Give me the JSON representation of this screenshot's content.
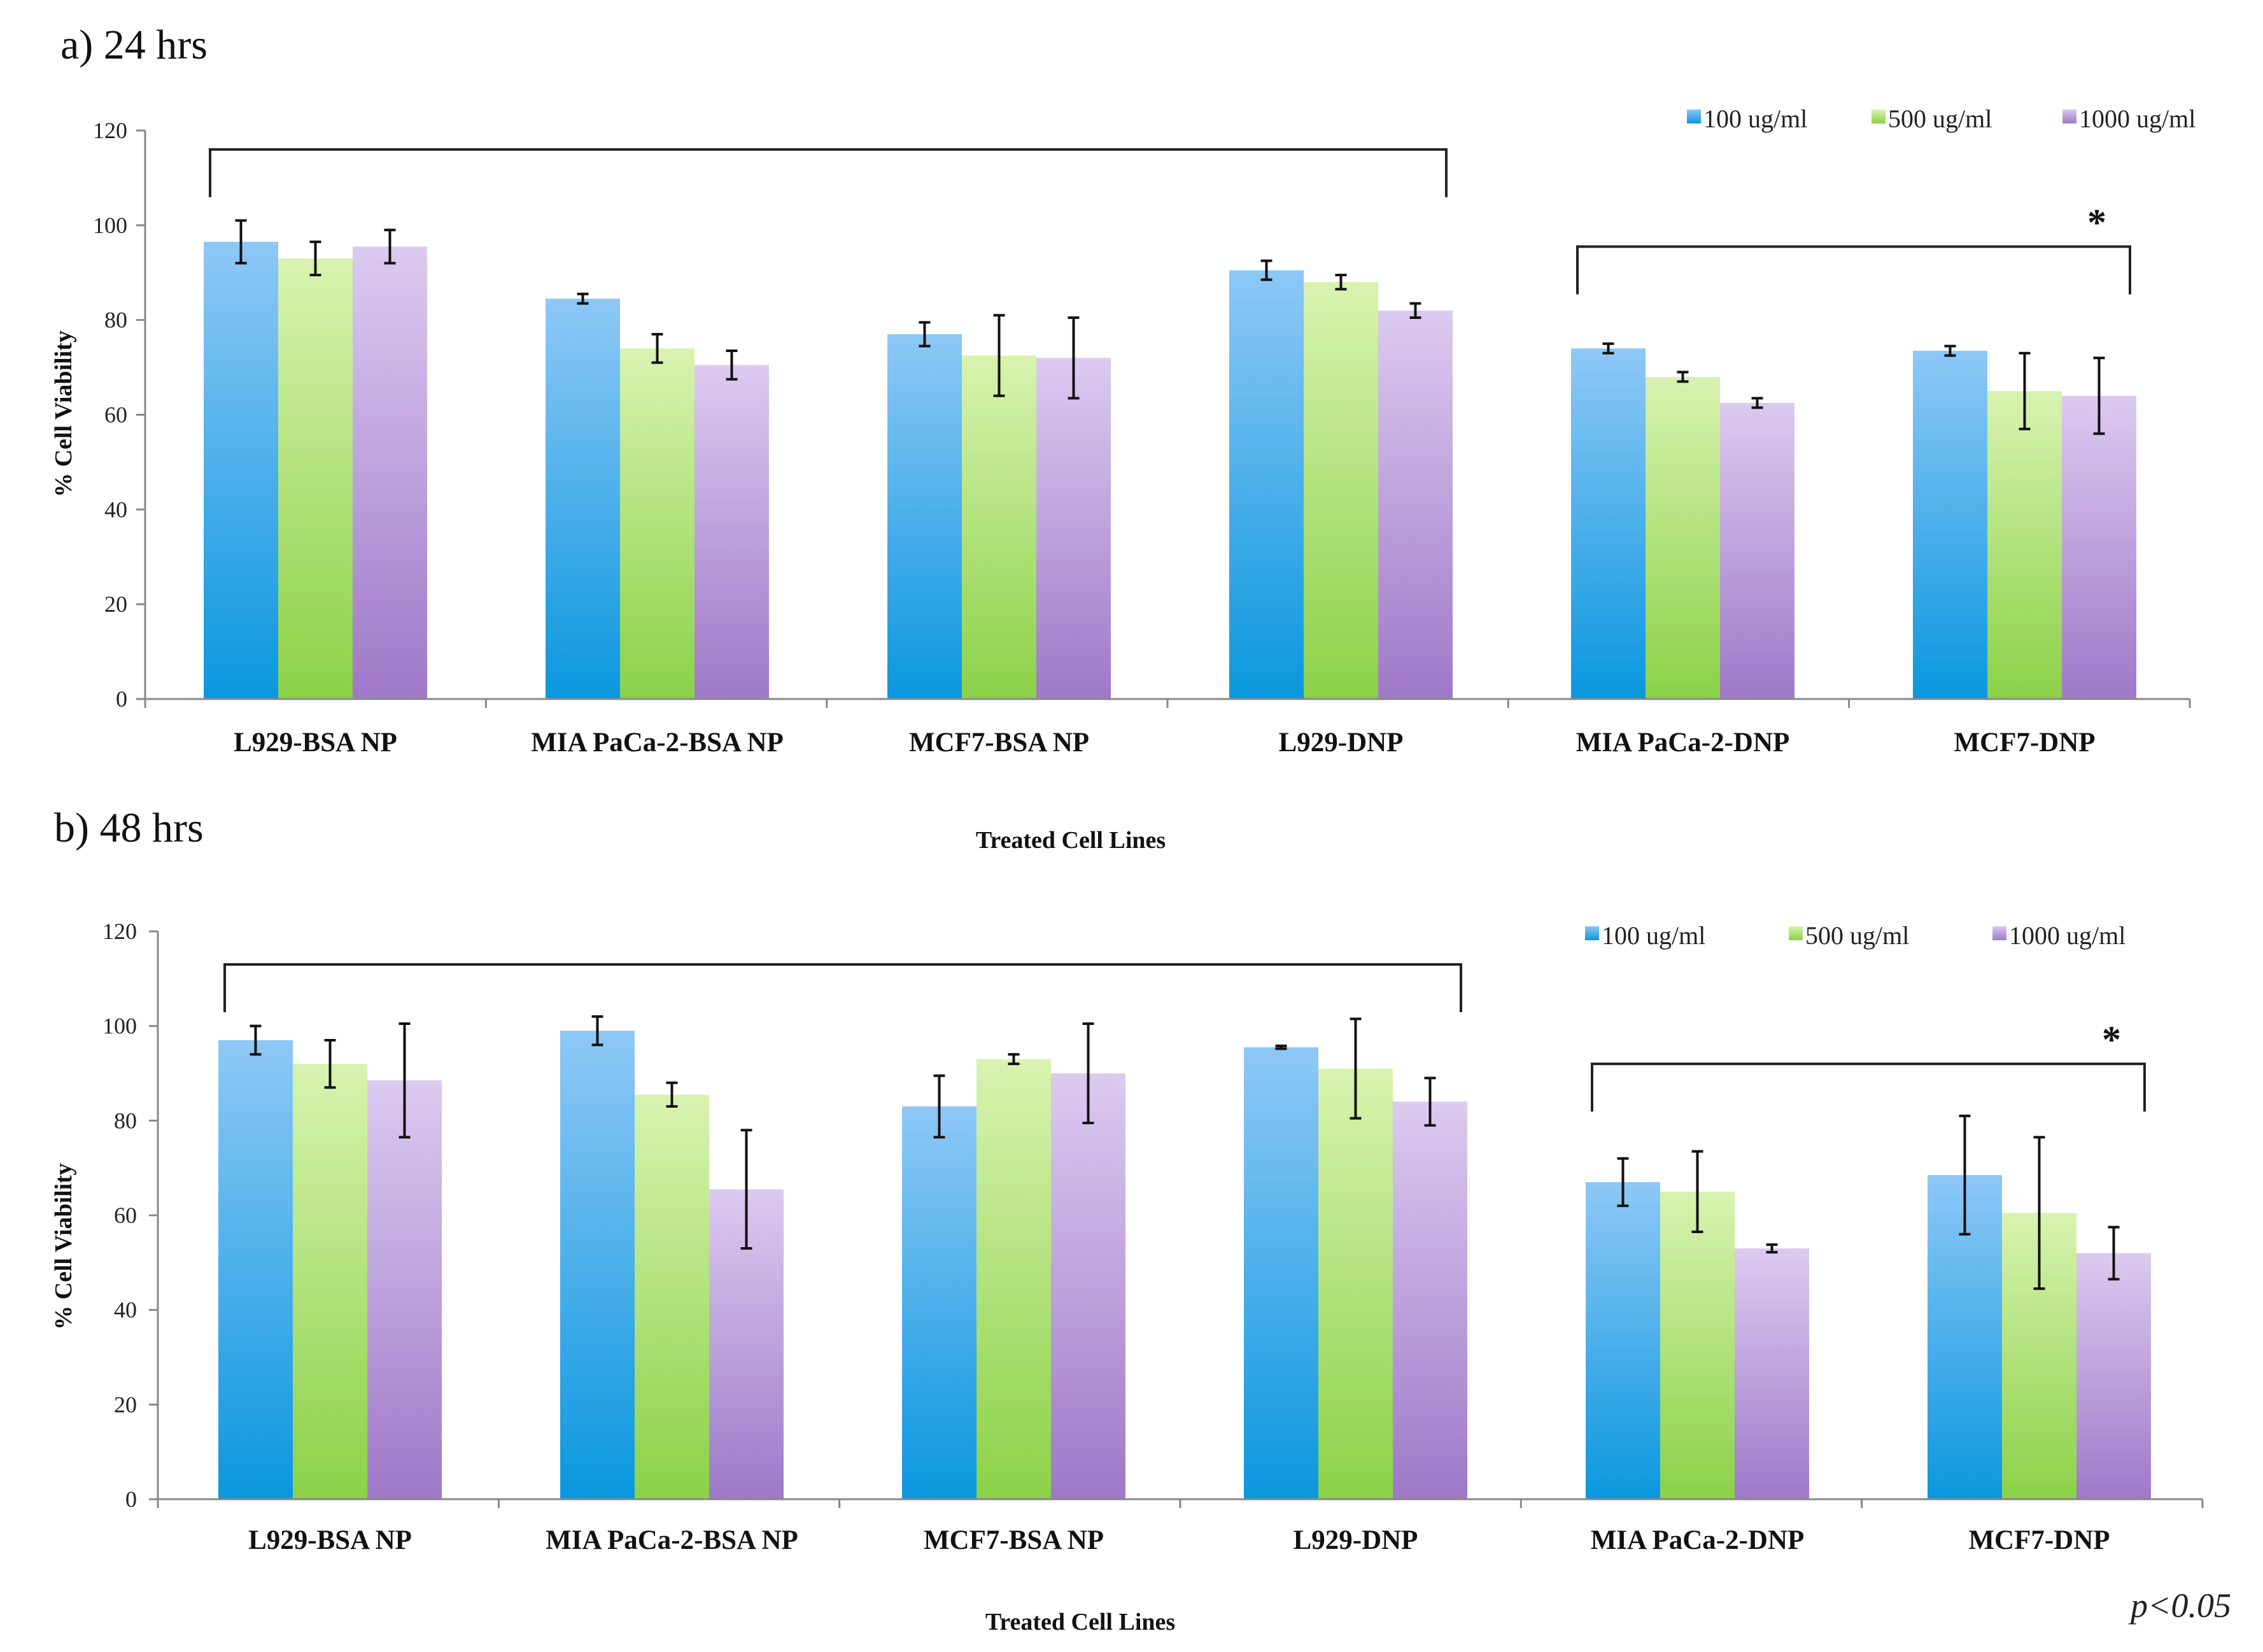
{
  "chart_data": [
    {
      "type": "bar",
      "title": "a) 24 hrs",
      "xlabel": "Treated Cell Lines",
      "ylabel": "% Cell Viability",
      "ylim": [
        0,
        120
      ],
      "yticks": [
        0,
        20,
        40,
        60,
        80,
        100,
        120
      ],
      "categories": [
        "L929-BSA NP",
        "MIA PaCa-2-BSA NP",
        "MCF7-BSA NP",
        "L929-DNP",
        "MIA PaCa-2-DNP",
        "MCF7-DNP"
      ],
      "series": [
        {
          "name": "100 ug/ml",
          "values": [
            96.5,
            84.5,
            77,
            90.5,
            74,
            73.5
          ],
          "errors": [
            4.5,
            1,
            2.5,
            2,
            1,
            1
          ]
        },
        {
          "name": "500 ug/ml",
          "values": [
            93,
            74,
            72.5,
            88,
            68,
            65
          ],
          "errors": [
            3.5,
            3,
            8.5,
            1.5,
            1,
            8
          ]
        },
        {
          "name": "1000 ug/ml",
          "values": [
            95.5,
            70.5,
            72,
            82,
            62.5,
            64
          ],
          "errors": [
            3.5,
            3,
            8.5,
            1.5,
            1,
            8
          ]
        }
      ],
      "brackets": [
        {
          "from": "L929-BSA NP",
          "to": "L929-DNP",
          "level": 116
        },
        {
          "from": "MIA PaCa-2-DNP",
          "to": "MCF7-DNP",
          "level": 95.5,
          "label": "*"
        }
      ],
      "legend_position": "top-right",
      "grid": false
    },
    {
      "type": "bar",
      "title": "b) 48 hrs",
      "xlabel": "Treated Cell Lines",
      "ylabel": "% Cell Viability",
      "ylim": [
        0,
        120
      ],
      "yticks": [
        0,
        20,
        40,
        60,
        80,
        100,
        120
      ],
      "categories": [
        "L929-BSA NP",
        "MIA PaCa-2-BSA NP",
        "MCF7-BSA NP",
        "L929-DNP",
        "MIA PaCa-2-DNP",
        "MCF7-DNP"
      ],
      "series": [
        {
          "name": "100 ug/ml",
          "values": [
            97,
            99,
            83,
            95.5,
            67,
            68.5
          ],
          "errors": [
            3,
            3,
            6.5,
            0.3,
            5,
            12.5
          ]
        },
        {
          "name": "500 ug/ml",
          "values": [
            92,
            85.5,
            93,
            91,
            65,
            60.5
          ],
          "errors": [
            5,
            2.5,
            1,
            10.5,
            8.5,
            16
          ]
        },
        {
          "name": "1000 ug/ml",
          "values": [
            88.5,
            65.5,
            90,
            84,
            53,
            52
          ],
          "errors": [
            12,
            12.5,
            10.5,
            5,
            0.8,
            5.5
          ]
        }
      ],
      "brackets": [
        {
          "from": "L929-BSA NP",
          "to": "L929-DNP",
          "level": 113
        },
        {
          "from": "MIA PaCa-2-DNP",
          "to": "MCF7-DNP",
          "level": 92,
          "label": "*"
        }
      ],
      "legend_position": "top-right",
      "grid": false
    }
  ],
  "footnote": "p<0.05",
  "colors": {
    "s100_top": "#8ec8f6",
    "s100_bottom": "#0a97de",
    "s500_top": "#d8f3b0",
    "s500_bottom": "#8bd148",
    "s1000_top": "#dccaf0",
    "s1000_bottom": "#9f78c8",
    "axis": "#888888",
    "error": "#111111"
  }
}
